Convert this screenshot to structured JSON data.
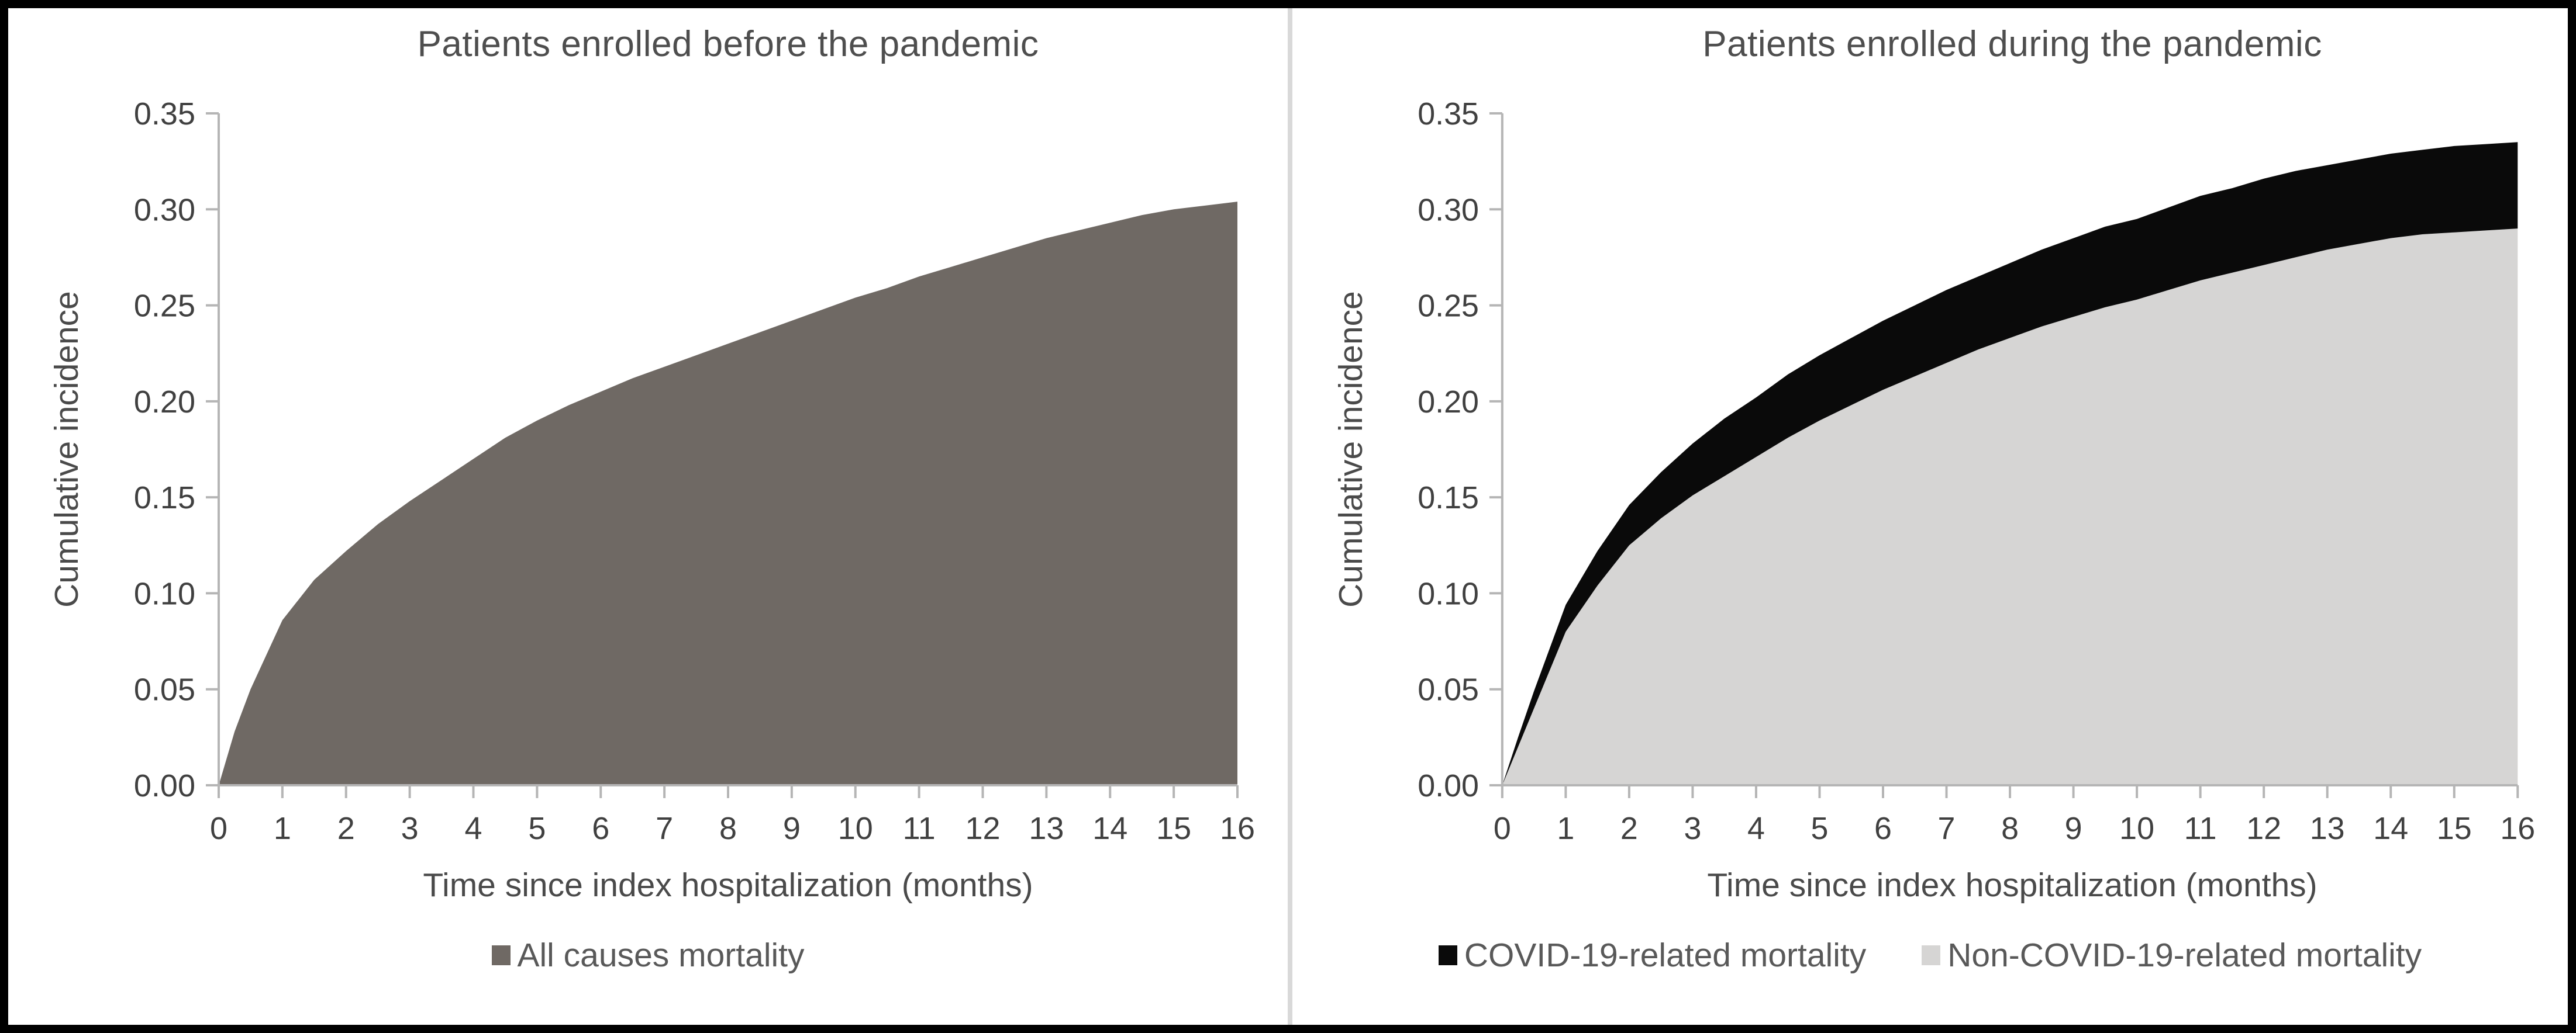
{
  "figure": {
    "background": "#ffffff",
    "border_color": "#000000",
    "divider_color": "#d9d9d9",
    "text_color": "#595959",
    "axis_color": "#b5b5b5"
  },
  "chart_data": [
    {
      "type": "area",
      "title": "Patients enrolled before the pandemic",
      "xlabel": "Time since index hospitalization (months)",
      "ylabel": "Cumulative incidence",
      "xlim": [
        0,
        16
      ],
      "ylim": [
        0,
        0.35
      ],
      "xticks": [
        0,
        1,
        2,
        3,
        4,
        5,
        6,
        7,
        8,
        9,
        10,
        11,
        12,
        13,
        14,
        15,
        16
      ],
      "yticks": [
        0.0,
        0.05,
        0.1,
        0.15,
        0.2,
        0.25,
        0.3,
        0.35
      ],
      "grid": false,
      "legend_position": "bottom",
      "stacked": false,
      "x": [
        0,
        0.25,
        0.5,
        1,
        1.5,
        2,
        2.5,
        3,
        3.5,
        4,
        4.5,
        5,
        5.5,
        6,
        6.5,
        7,
        7.5,
        8,
        8.5,
        9,
        9.5,
        10,
        10.5,
        11,
        11.5,
        12,
        12.5,
        13,
        13.5,
        14,
        14.5,
        15,
        15.5,
        16
      ],
      "series": [
        {
          "name": "All causes mortality",
          "color": "#6f6964",
          "values": [
            0,
            0.028,
            0.05,
            0.086,
            0.107,
            0.122,
            0.136,
            0.148,
            0.159,
            0.17,
            0.181,
            0.19,
            0.198,
            0.205,
            0.212,
            0.218,
            0.224,
            0.23,
            0.236,
            0.242,
            0.248,
            0.254,
            0.259,
            0.265,
            0.27,
            0.275,
            0.28,
            0.285,
            0.289,
            0.293,
            0.297,
            0.3,
            0.302,
            0.304
          ]
        }
      ],
      "legend": [
        {
          "label": "All causes mortality",
          "color": "#6f6964"
        }
      ]
    },
    {
      "type": "stacked-area",
      "title": "Patients enrolled during the pandemic",
      "xlabel": "Time since index hospitalization (months)",
      "ylabel": "Cumulative incidence",
      "xlim": [
        0,
        16
      ],
      "ylim": [
        0,
        0.35
      ],
      "xticks": [
        0,
        1,
        2,
        3,
        4,
        5,
        6,
        7,
        8,
        9,
        10,
        11,
        12,
        13,
        14,
        15,
        16
      ],
      "yticks": [
        0.0,
        0.05,
        0.1,
        0.15,
        0.2,
        0.25,
        0.3,
        0.35
      ],
      "grid": false,
      "legend_position": "bottom",
      "stacked": true,
      "stack_order_note": "series listed bottom-to-top; black COVID band sits on top of the grey non-COVID area",
      "x": [
        0,
        0.25,
        0.5,
        1,
        1.5,
        2,
        2.5,
        3,
        3.5,
        4,
        4.5,
        5,
        5.5,
        6,
        6.5,
        7,
        7.5,
        8,
        8.5,
        9,
        9.5,
        10,
        10.5,
        11,
        11.5,
        12,
        12.5,
        13,
        13.5,
        14,
        14.5,
        15,
        15.5,
        16
      ],
      "series": [
        {
          "name": "Non-COVID-19-related mortality",
          "color": "#d6d5d4",
          "values": [
            0,
            0.02,
            0.04,
            0.08,
            0.104,
            0.125,
            0.139,
            0.151,
            0.161,
            0.171,
            0.181,
            0.19,
            0.198,
            0.206,
            0.213,
            0.22,
            0.227,
            0.233,
            0.239,
            0.244,
            0.249,
            0.253,
            0.258,
            0.263,
            0.267,
            0.271,
            0.275,
            0.279,
            0.282,
            0.285,
            0.287,
            0.288,
            0.289,
            0.29
          ]
        },
        {
          "name": "COVID-19-related mortality",
          "color": "#0a0a0a",
          "values": [
            0,
            0.005,
            0.009,
            0.014,
            0.018,
            0.021,
            0.024,
            0.027,
            0.03,
            0.031,
            0.033,
            0.034,
            0.035,
            0.036,
            0.037,
            0.038,
            0.038,
            0.039,
            0.04,
            0.041,
            0.042,
            0.042,
            0.043,
            0.044,
            0.044,
            0.045,
            0.045,
            0.044,
            0.044,
            0.044,
            0.044,
            0.045,
            0.045,
            0.045
          ]
        }
      ],
      "legend": [
        {
          "label": "COVID-19-related mortality",
          "color": "#0a0a0a"
        },
        {
          "label": "Non-COVID-19-related mortality",
          "color": "#d6d5d4"
        }
      ]
    }
  ]
}
